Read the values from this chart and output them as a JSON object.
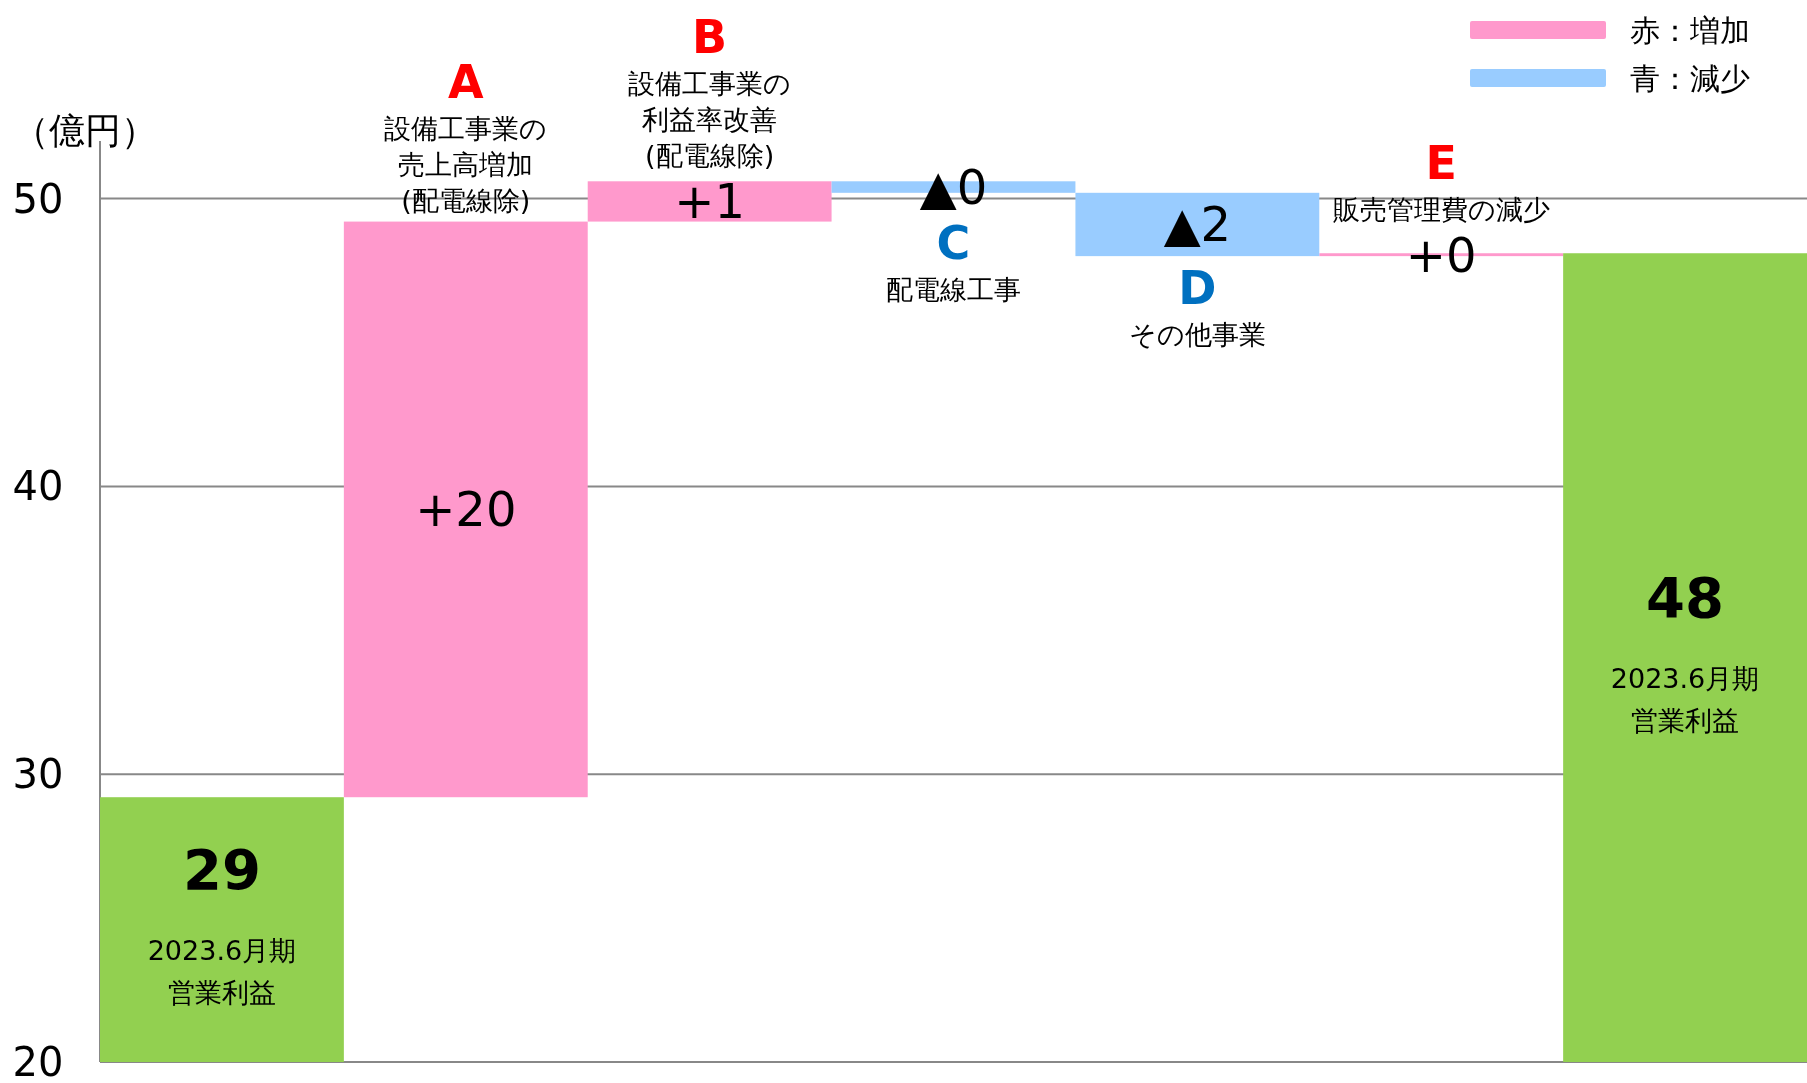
{
  "chart_data": {
    "type": "bar",
    "ylabel": "（億円）",
    "categories": [
      "2023.6月期営業利益",
      "設備工事業の売上高増加(配電線除)",
      "設備工事業の利益率改善(配電線除)",
      "配電線工事",
      "その他事業",
      "販売管理費の減少",
      "2023.6月期営業利益"
    ],
    "series": [
      {
        "name": "赤：増加",
        "color": "#ff99cc",
        "values": [
          null,
          20.0,
          1.4,
          null,
          null,
          0.1,
          null
        ],
        "base": [
          null,
          29.2,
          49.2,
          null,
          null,
          48.0,
          null
        ],
        "value_labels": [
          null,
          "+20",
          "+1",
          null,
          null,
          "+0",
          null
        ]
      },
      {
        "name": "青：減少",
        "color": "#99ccff",
        "values": [
          null,
          null,
          null,
          -0.4,
          -2.2,
          null,
          null
        ],
        "base": [
          null,
          null,
          null,
          50.6,
          50.2,
          null,
          null
        ],
        "value_labels": [
          null,
          null,
          null,
          "▲0",
          "▲2",
          null,
          null
        ]
      },
      {
        "color": "#92d050",
        "values": [
          29.2,
          null,
          null,
          null,
          null,
          null,
          48.1
        ],
        "value_labels": [
          "29",
          null,
          null,
          null,
          null,
          null,
          "48"
        ]
      }
    ],
    "annotations": [
      "A",
      "B",
      "C",
      "D",
      "E"
    ],
    "ylim": [
      20,
      52
    ],
    "yticks": [
      20,
      30,
      40,
      50
    ],
    "grid": "y",
    "legend": "top right"
  }
}
